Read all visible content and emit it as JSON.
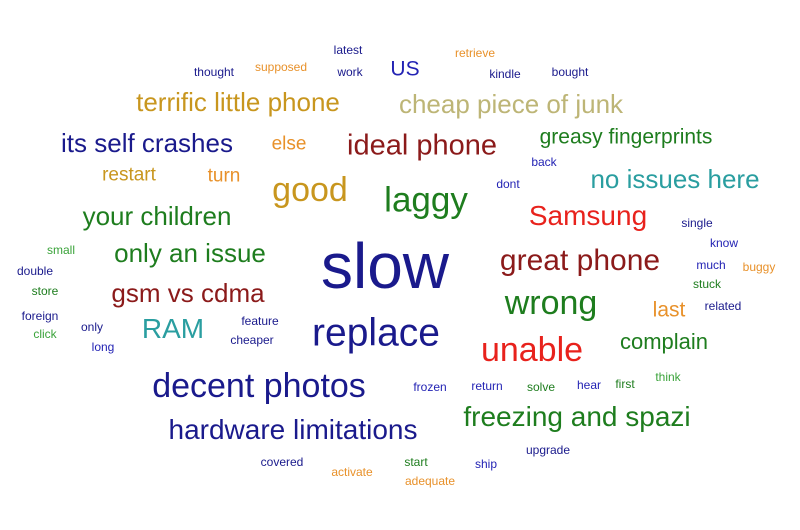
{
  "palette": {
    "navy": "#1a1a8c",
    "blue": "#2323b4",
    "green": "#1e7d1e",
    "light_green": "#3aa33a",
    "orange": "#e8912a",
    "gold": "#c8961e",
    "khaki": "#bdb576",
    "teal": "#2a9ea0",
    "red": "#e8221c",
    "maroon": "#8b1a1a"
  },
  "words": [
    {
      "text": "thought",
      "color": "#1a1a8c"
    },
    {
      "text": "supposed",
      "color": "#e8912a"
    },
    {
      "text": "latest",
      "color": "#1a1a8c"
    },
    {
      "text": "work",
      "color": "#1a1a8c"
    },
    {
      "text": "US",
      "color": "#2323b4"
    },
    {
      "text": "retrieve",
      "color": "#e8912a"
    },
    {
      "text": "kindle",
      "color": "#1a1a8c"
    },
    {
      "text": "bought",
      "color": "#1a1a8c"
    },
    {
      "text": "terrific little phone",
      "color": "#c8961e"
    },
    {
      "text": "cheap piece of junk",
      "color": "#bdb576"
    },
    {
      "text": "its self crashes",
      "color": "#1a1a8c"
    },
    {
      "text": "else",
      "color": "#e8912a"
    },
    {
      "text": "ideal phone",
      "color": "#8b1a1a"
    },
    {
      "text": "greasy fingerprints",
      "color": "#1e7d1e"
    },
    {
      "text": "back",
      "color": "#2323b4"
    },
    {
      "text": "restart",
      "color": "#c8961e"
    },
    {
      "text": "turn",
      "color": "#e8912a"
    },
    {
      "text": "good",
      "color": "#c8961e"
    },
    {
      "text": "laggy",
      "color": "#1e7d1e"
    },
    {
      "text": "dont",
      "color": "#2323b4"
    },
    {
      "text": "no issues here",
      "color": "#2a9ea0"
    },
    {
      "text": "your children",
      "color": "#1e7d1e"
    },
    {
      "text": "Samsung",
      "color": "#e8221c"
    },
    {
      "text": "single",
      "color": "#1a1a8c"
    },
    {
      "text": "small",
      "color": "#3aa33a"
    },
    {
      "text": "only an issue",
      "color": "#1e7d1e"
    },
    {
      "text": "slow",
      "color": "#1a1a8c"
    },
    {
      "text": "great phone",
      "color": "#8b1a1a"
    },
    {
      "text": "know",
      "color": "#2323b4"
    },
    {
      "text": "double",
      "color": "#1a1a8c"
    },
    {
      "text": "much",
      "color": "#2323b4"
    },
    {
      "text": "buggy",
      "color": "#e8912a"
    },
    {
      "text": "stuck",
      "color": "#1e7d1e"
    },
    {
      "text": "store",
      "color": "#1e7d1e"
    },
    {
      "text": "gsm vs cdma",
      "color": "#8b1a1a"
    },
    {
      "text": "wrong",
      "color": "#1e7d1e"
    },
    {
      "text": "related",
      "color": "#1a1a8c"
    },
    {
      "text": "foreign",
      "color": "#1a1a8c"
    },
    {
      "text": "last",
      "color": "#e8912a"
    },
    {
      "text": "only",
      "color": "#1a1a8c"
    },
    {
      "text": "feature",
      "color": "#1a1a8c"
    },
    {
      "text": "click",
      "color": "#3aa33a"
    },
    {
      "text": "RAM",
      "color": "#2a9ea0"
    },
    {
      "text": "replace",
      "color": "#1a1a8c"
    },
    {
      "text": "cheaper",
      "color": "#1a1a8c"
    },
    {
      "text": "long",
      "color": "#2323b4"
    },
    {
      "text": "complain",
      "color": "#1e7d1e"
    },
    {
      "text": "unable",
      "color": "#e8221c"
    },
    {
      "text": "think",
      "color": "#3aa33a"
    },
    {
      "text": "decent photos",
      "color": "#1a1a8c"
    },
    {
      "text": "frozen",
      "color": "#2323b4"
    },
    {
      "text": "return",
      "color": "#2323b4"
    },
    {
      "text": "solve",
      "color": "#1e7d1e"
    },
    {
      "text": "hear",
      "color": "#2323b4"
    },
    {
      "text": "first",
      "color": "#1e7d1e"
    },
    {
      "text": "freezing and spazi",
      "color": "#1e7d1e"
    },
    {
      "text": "hardware limitations",
      "color": "#1a1a8c"
    },
    {
      "text": "upgrade",
      "color": "#1a1a8c"
    },
    {
      "text": "covered",
      "color": "#1a1a8c"
    },
    {
      "text": "start",
      "color": "#1e7d1e"
    },
    {
      "text": "ship",
      "color": "#2323b4"
    },
    {
      "text": "activate",
      "color": "#e8912a"
    },
    {
      "text": "adequate",
      "color": "#e8912a"
    }
  ]
}
